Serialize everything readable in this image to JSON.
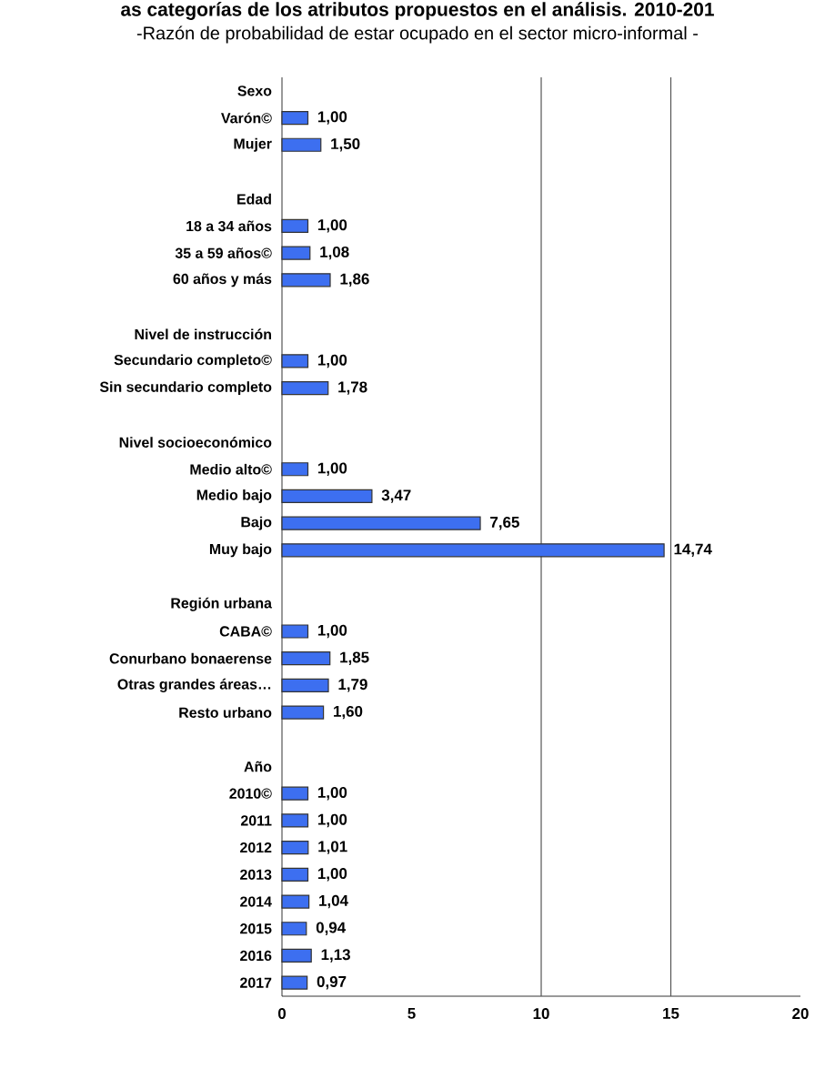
{
  "chart_data": {
    "type": "bar",
    "orientation": "horizontal",
    "title": "as categorías de los atributos propuestos en el análisis. 2010-201",
    "subtitle": "-Razón de probabilidad de estar ocupado en el sector micro-informal -",
    "categories": [
      "Sexo",
      "Varón©",
      "Mujer",
      null,
      "Edad",
      "18 a 34 años",
      "35 a 59 años©",
      "60 años y más",
      null,
      "Nivel de instrucción",
      "Secundario completo©",
      "Sin secundario completo",
      null,
      "Nivel socioeconómico",
      "Medio alto©",
      "Medio bajo",
      "Bajo",
      "Muy bajo",
      null,
      "Región urbana",
      "CABA©",
      "Conurbano bonaerense",
      "Otras grandes áreas…",
      "Resto urbano",
      null,
      "Año",
      "2010©",
      "2011",
      "2012",
      "2013",
      "2014",
      "2015",
      "2016",
      "2017"
    ],
    "values": [
      null,
      1.0,
      1.5,
      null,
      null,
      1.0,
      1.08,
      1.86,
      null,
      null,
      1.0,
      1.78,
      null,
      null,
      1.0,
      3.47,
      7.65,
      14.74,
      null,
      null,
      1.0,
      1.85,
      1.79,
      1.6,
      null,
      null,
      1.0,
      1.0,
      1.01,
      1.0,
      1.04,
      0.94,
      1.13,
      0.97
    ],
    "value_labels": [
      null,
      "1,00",
      "1,50",
      null,
      null,
      "1,00",
      "1,08",
      "1,86",
      null,
      null,
      "1,00",
      "1,78",
      null,
      null,
      "1,00",
      "3,47",
      "7,65",
      "14,74",
      null,
      null,
      "1,00",
      "1,85",
      "1,79",
      "1,60",
      null,
      null,
      "1,00",
      "1,00",
      "1,01",
      "1,00",
      "1,04",
      "0,94",
      "1,13",
      "0,97"
    ],
    "color": "#3d6ff0",
    "xlim": [
      0,
      20
    ],
    "xticks": [
      0,
      5,
      10,
      15,
      20
    ],
    "ref_lines": [
      {
        "axis": "x",
        "value": 10,
        "color": "#555555"
      },
      {
        "axis": "x",
        "value": 15,
        "color": "#555555"
      }
    ]
  }
}
